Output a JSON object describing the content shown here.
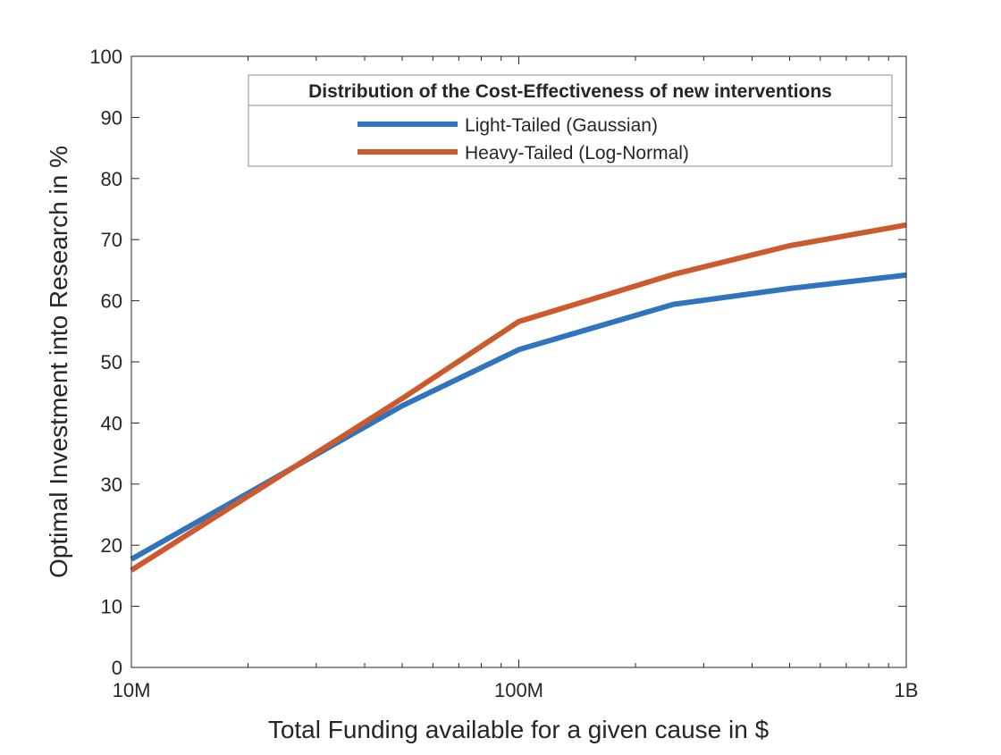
{
  "chart_data": {
    "type": "line",
    "xscale": "log",
    "xlabel": "Total Funding available for a given cause in $",
    "ylabel": "Optimal Investment into Research in %",
    "xlim": [
      10000000,
      1000000000
    ],
    "ylim": [
      0,
      100
    ],
    "xticks": [
      {
        "value": 10000000,
        "label": "10M"
      },
      {
        "value": 100000000,
        "label": "100M"
      },
      {
        "value": 1000000000,
        "label": "1B"
      }
    ],
    "yticks": [
      0,
      10,
      20,
      30,
      40,
      50,
      60,
      70,
      80,
      90,
      100
    ],
    "grid": false,
    "x": [
      10000000,
      50000000,
      100000000,
      250000000,
      500000000,
      1000000000
    ],
    "series": [
      {
        "name": "Light-Tailed (Gaussian)",
        "color": "#2F74BD",
        "values": [
          17.7,
          42.8,
          52.0,
          59.4,
          62.0,
          64.2
        ]
      },
      {
        "name": "Heavy-Tailed (Log-Normal)",
        "color": "#CD5A2C",
        "values": [
          15.9,
          44.0,
          56.6,
          64.3,
          69.0,
          72.4
        ]
      }
    ],
    "legend": {
      "title": "Distribution of the Cost-Effectiveness of new interventions",
      "placement": "top-right"
    }
  }
}
